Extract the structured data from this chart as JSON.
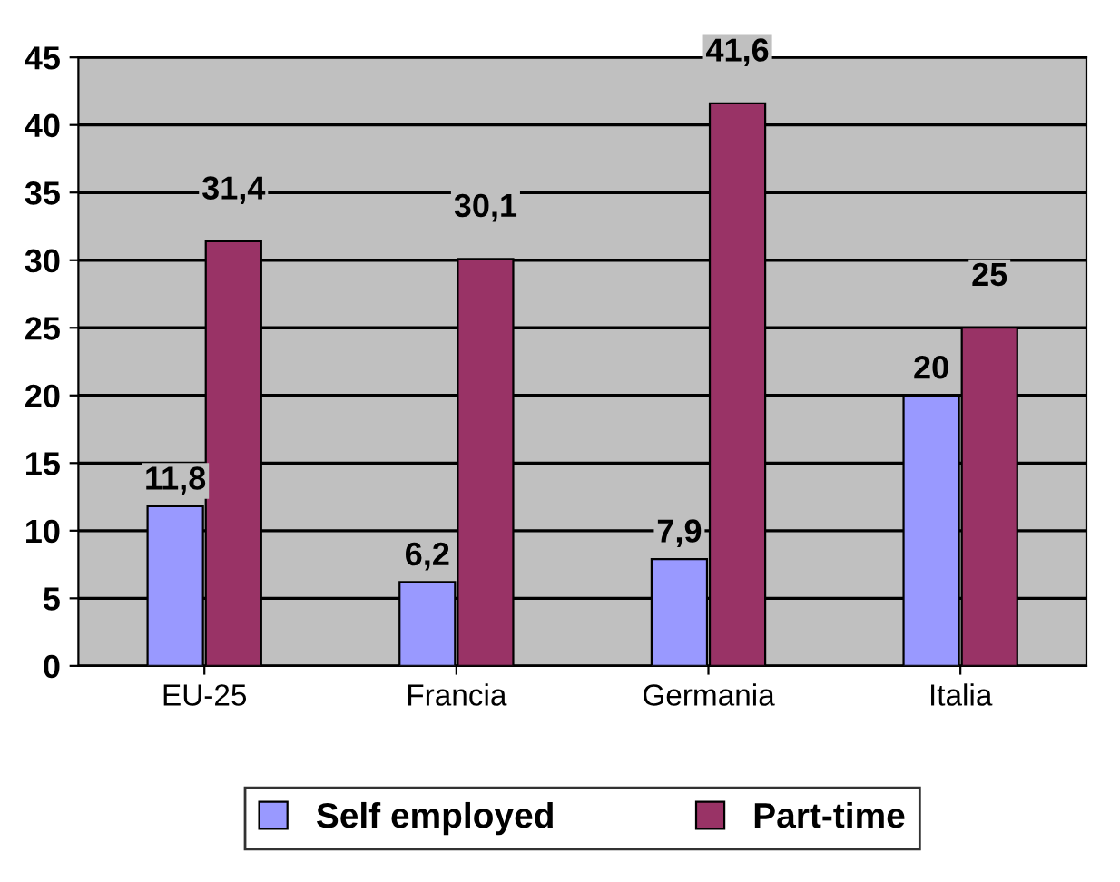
{
  "chart_data": {
    "type": "bar",
    "categories": [
      "EU-25",
      "Francia",
      "Germania",
      "Italia"
    ],
    "series": [
      {
        "name": "Self employed",
        "color": "#9999ff",
        "values": [
          11.8,
          6.2,
          7.9,
          20
        ],
        "value_labels": [
          "11,8",
          "6,2",
          "7,9",
          "20"
        ]
      },
      {
        "name": "Part-time",
        "color": "#993366",
        "values": [
          31.4,
          30.1,
          41.6,
          25
        ],
        "value_labels": [
          "31,4",
          "30,1",
          "41,6",
          "25"
        ]
      }
    ],
    "ylim": [
      0,
      45
    ],
    "yticks": [
      0,
      5,
      10,
      15,
      20,
      25,
      30,
      35,
      40,
      45
    ],
    "grid": "y",
    "legend": "bottom"
  }
}
